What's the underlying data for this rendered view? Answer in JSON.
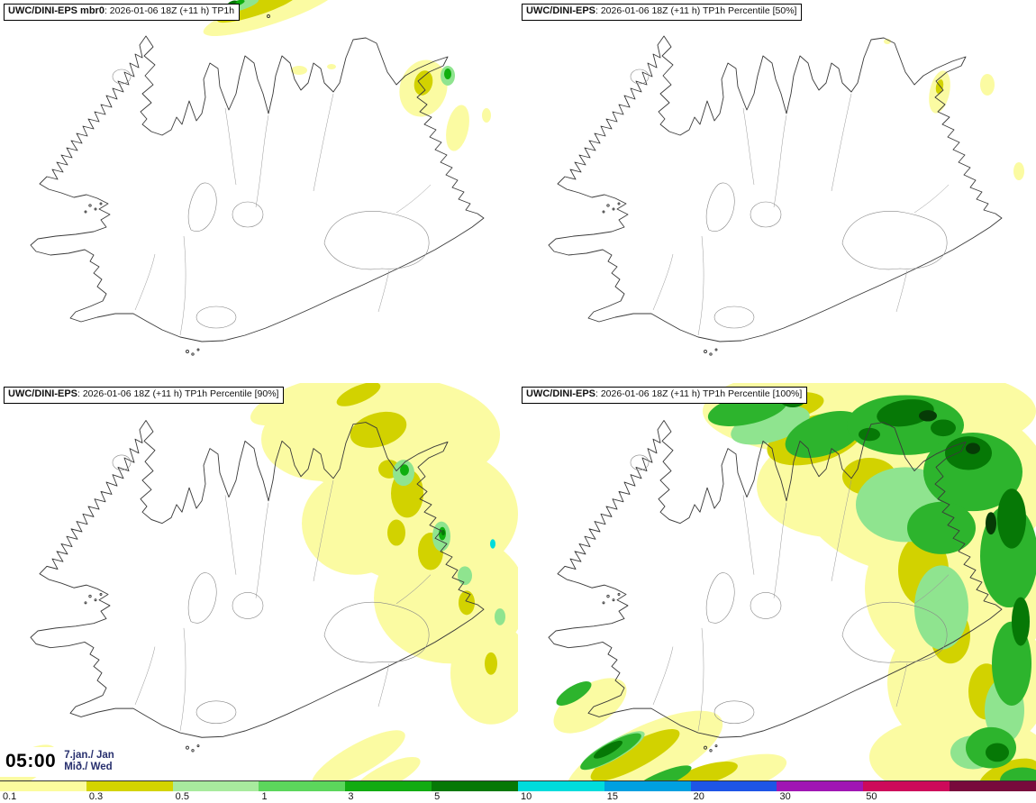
{
  "panels": [
    {
      "model": "UWC/DINI-EPS mbr0",
      "detail": ": 2026-01-06 18Z (+11 h) TP1h"
    },
    {
      "model": "UWC/DINI-EPS",
      "detail": ": 2026-01-06 18Z (+11 h) TP1h Percentile [50%]"
    },
    {
      "model": "UWC/DINI-EPS",
      "detail": ": 2026-01-06 18Z (+11 h) TP1h Percentile [90%]"
    },
    {
      "model": "UWC/DINI-EPS",
      "detail": ": 2026-01-06 18Z (+11 h) TP1h Percentile [100%]"
    }
  ],
  "clock": {
    "time": "05:00",
    "date": "7.jan./ Jan",
    "day": "Mið./ Wed"
  },
  "colorbar": {
    "ticks": [
      "0.1",
      "0.3",
      "0.5",
      "1",
      "3",
      "5",
      "10",
      "15",
      "20",
      "30",
      "50"
    ],
    "colors": [
      "#fcfc9e",
      "#d4d400",
      "#a8ea9e",
      "#5cd65c",
      "#12ab12",
      "#067806",
      "#00dcdc",
      "#00a0e0",
      "#1e55e6",
      "#a016b4",
      "#cd0a5a",
      "#780a3c"
    ]
  },
  "precip_palette": {
    "p01": "#fbfba2",
    "p03": "#d2d200",
    "p05": "#8fe48f",
    "p1": "#2db42d",
    "p3": "#0faf0f",
    "p5": "#067806",
    "p10": "#00dcdc"
  }
}
